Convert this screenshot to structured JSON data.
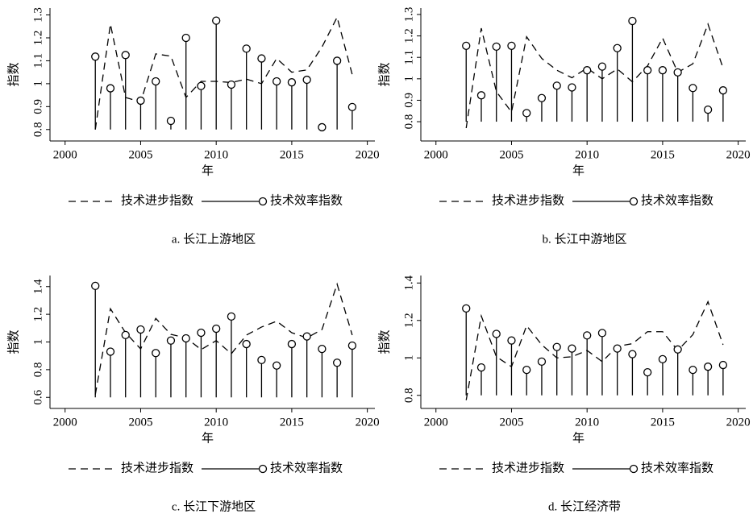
{
  "chart_data": [
    {
      "type": "line",
      "caption": "a. 长江上游地区",
      "xlabel": "年",
      "ylabel": "指数",
      "x": [
        2002,
        2003,
        2004,
        2005,
        2006,
        2007,
        2008,
        2009,
        2010,
        2011,
        2012,
        2013,
        2014,
        2015,
        2016,
        2017,
        2018,
        2019
      ],
      "xlim": [
        1999,
        2020.5
      ],
      "xticks": [
        2000,
        2005,
        2010,
        2015,
        2020
      ],
      "ylim": [
        0.75,
        1.33
      ],
      "yticks": [
        0.8,
        0.9,
        1,
        1.1,
        1.2,
        1.3
      ],
      "series": [
        {
          "name": "技术进步指数",
          "color": "#000000",
          "style": "dashed",
          "values": [
            0.8,
            1.26,
            0.94,
            0.92,
            1.13,
            1.12,
            0.94,
            1.01,
            1.01,
            1.005,
            1.02,
            1.0,
            1.11,
            1.05,
            1.06,
            1.16,
            1.29,
            1.04
          ]
        },
        {
          "name": "技术效率指数",
          "color": "#000000",
          "style": "stem",
          "values": [
            1.118,
            0.98,
            1.125,
            0.926,
            1.01,
            0.838,
            1.2,
            0.99,
            1.275,
            0.996,
            1.153,
            1.11,
            1.01,
            1.006,
            1.017,
            0.81,
            1.1,
            0.898
          ]
        }
      ]
    },
    {
      "type": "line",
      "caption": "b. 长江中游地区",
      "xlabel": "年",
      "ylabel": "指数",
      "x": [
        2002,
        2003,
        2004,
        2005,
        2006,
        2007,
        2008,
        2009,
        2010,
        2011,
        2012,
        2013,
        2014,
        2015,
        2016,
        2017,
        2018,
        2019
      ],
      "xlim": [
        1999,
        2020.5
      ],
      "xticks": [
        2000,
        2005,
        2010,
        2015,
        2020
      ],
      "ylim": [
        0.71,
        1.33
      ],
      "yticks": [
        0.8,
        0.9,
        1,
        1.1,
        1.2,
        1.3
      ],
      "series": [
        {
          "name": "技术进步指数",
          "color": "#000000",
          "style": "dashed",
          "values": [
            0.77,
            1.236,
            0.94,
            0.845,
            1.196,
            1.095,
            1.04,
            1.005,
            1.05,
            1.0,
            1.046,
            0.986,
            1.06,
            1.19,
            1.03,
            1.07,
            1.255,
            1.05
          ]
        },
        {
          "name": "技术效率指数",
          "color": "#000000",
          "style": "stem",
          "values": [
            1.154,
            0.923,
            1.15,
            1.154,
            0.84,
            0.91,
            0.968,
            0.96,
            1.04,
            1.057,
            1.143,
            1.27,
            1.04,
            1.04,
            1.03,
            0.957,
            0.856,
            0.946
          ]
        }
      ]
    },
    {
      "type": "line",
      "caption": "c. 长江下游地区",
      "xlabel": "年",
      "ylabel": "指数",
      "x": [
        2002,
        2003,
        2004,
        2005,
        2006,
        2007,
        2008,
        2009,
        2010,
        2011,
        2012,
        2013,
        2014,
        2015,
        2016,
        2017,
        2018,
        2019
      ],
      "xlim": [
        1999,
        2020.5
      ],
      "xticks": [
        2000,
        2005,
        2010,
        2015,
        2020
      ],
      "ylim": [
        0.52,
        1.48
      ],
      "yticks": [
        0.6,
        0.8,
        1,
        1.2,
        1.4
      ],
      "series": [
        {
          "name": "技术进步指数",
          "color": "#000000",
          "style": "dashed",
          "values": [
            0.62,
            1.24,
            1.067,
            0.95,
            1.17,
            1.055,
            1.03,
            0.945,
            1.01,
            0.915,
            1.05,
            1.108,
            1.15,
            1.067,
            1.03,
            1.09,
            1.418,
            1.05
          ]
        },
        {
          "name": "技术效率指数",
          "color": "#000000",
          "style": "stem",
          "values": [
            1.405,
            0.93,
            1.05,
            1.09,
            0.92,
            1.01,
            1.026,
            1.067,
            1.096,
            1.184,
            0.985,
            0.87,
            0.83,
            0.985,
            1.04,
            0.95,
            0.85,
            0.974
          ]
        }
      ]
    },
    {
      "type": "line",
      "caption": "d. 长江经济带",
      "xlabel": "年",
      "ylabel": "指数",
      "x": [
        2002,
        2003,
        2004,
        2005,
        2006,
        2007,
        2008,
        2009,
        2010,
        2011,
        2012,
        2013,
        2014,
        2015,
        2016,
        2017,
        2018,
        2019
      ],
      "xlim": [
        1999,
        2020.5
      ],
      "xticks": [
        2000,
        2005,
        2010,
        2015,
        2020
      ],
      "ylim": [
        0.73,
        1.44
      ],
      "yticks": [
        0.8,
        1,
        1.2,
        1.4
      ],
      "series": [
        {
          "name": "技术进步指数",
          "color": "#000000",
          "style": "dashed",
          "values": [
            0.774,
            1.224,
            1.006,
            0.953,
            1.172,
            1.07,
            1.0,
            1.006,
            1.04,
            0.98,
            1.062,
            1.076,
            1.14,
            1.14,
            1.04,
            1.124,
            1.3,
            1.07
          ]
        },
        {
          "name": "技术效率指数",
          "color": "#000000",
          "style": "stem",
          "values": [
            1.264,
            0.949,
            1.128,
            1.093,
            0.936,
            0.98,
            1.058,
            1.05,
            1.12,
            1.133,
            1.05,
            1.02,
            0.923,
            0.993,
            1.045,
            0.936,
            0.953,
            0.962
          ]
        }
      ]
    }
  ]
}
